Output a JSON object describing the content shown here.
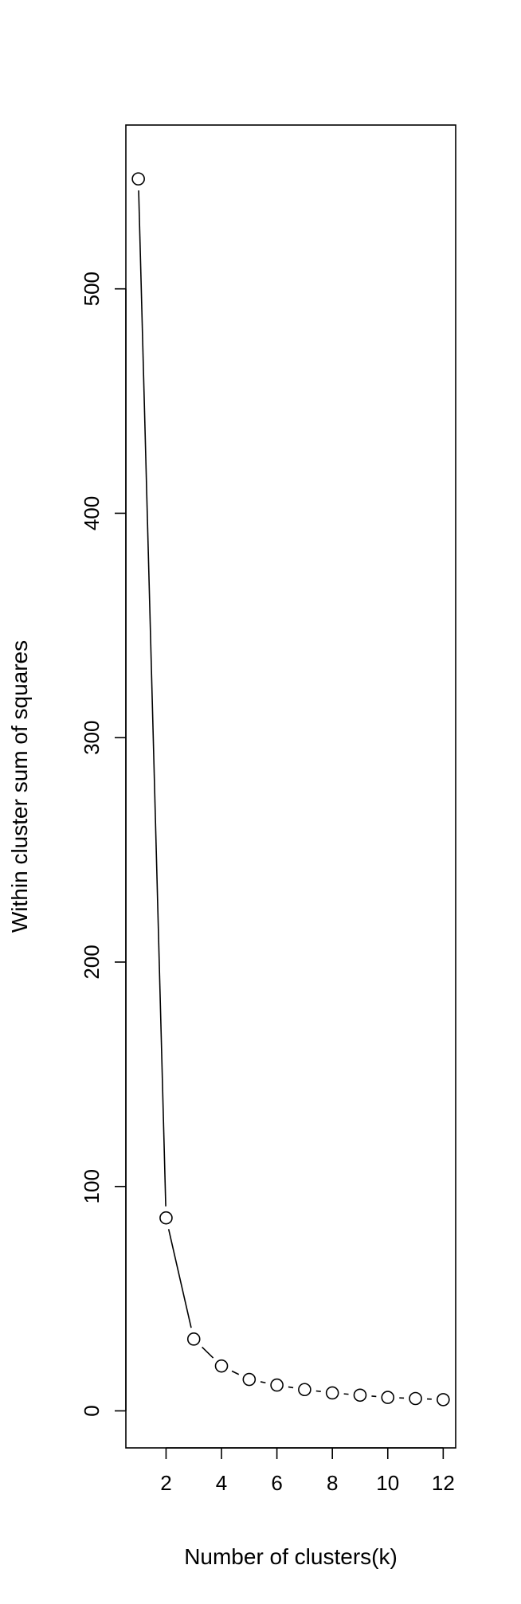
{
  "chart_data": {
    "type": "line",
    "title": "",
    "xlabel": "Number of clusters(k)",
    "ylabel": "Within cluster sum of squares",
    "x": [
      1,
      2,
      3,
      4,
      5,
      6,
      7,
      8,
      9,
      10,
      11,
      12
    ],
    "y": [
      549,
      86,
      32,
      20,
      14,
      11.5,
      9.5,
      8,
      7,
      6,
      5.5,
      5
    ],
    "xlim": [
      0.55,
      12.45
    ],
    "ylim": [
      -16.5,
      573
    ],
    "xticks": [
      2,
      4,
      6,
      8,
      10,
      12
    ],
    "yticks": [
      0,
      100,
      200,
      300,
      400,
      500
    ],
    "grid": false,
    "marker": "open-circle",
    "line_style": "both",
    "colors": {
      "line": "#000000",
      "marker_stroke": "#000000",
      "marker_fill": "#ffffff",
      "background": "#ffffff"
    }
  }
}
